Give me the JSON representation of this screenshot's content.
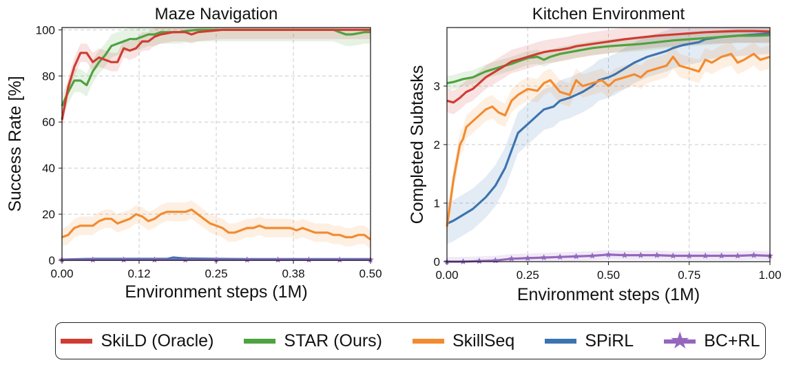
{
  "colors": {
    "skild": "#d03c31",
    "star": "#4ea23f",
    "skillseq": "#f28b30",
    "spirl": "#3b74b0",
    "bcrl": "#9467bd"
  },
  "legend": [
    {
      "label": "SkiLD (Oracle)",
      "color": "#d03c31",
      "marker": "line"
    },
    {
      "label": "STAR (Ours)",
      "color": "#4ea23f",
      "marker": "line"
    },
    {
      "label": "SkillSeq",
      "color": "#f28b30",
      "marker": "line"
    },
    {
      "label": "SPiRL",
      "color": "#3b74b0",
      "marker": "line"
    },
    {
      "label": "BC+RL",
      "color": "#9467bd",
      "marker": "star"
    }
  ],
  "chart_data": [
    {
      "type": "line",
      "title": "Maze Navigation",
      "xlabel": "Environment steps (1M)",
      "ylabel": "Success Rate [%]",
      "xlim": [
        0,
        0.5
      ],
      "ylim": [
        0,
        101
      ],
      "xticks": [
        "0.00",
        "0.12",
        "0.25",
        "0.38",
        "0.50"
      ],
      "xtick_values": [
        0,
        0.125,
        0.25,
        0.375,
        0.5
      ],
      "yticks": [
        "0",
        "20",
        "40",
        "60",
        "80",
        "100"
      ],
      "ytick_values": [
        0,
        20,
        40,
        60,
        80,
        100
      ],
      "grid": true,
      "series": [
        {
          "key": "skillseq",
          "x": [
            0,
            0.01,
            0.02,
            0.03,
            0.04,
            0.05,
            0.06,
            0.07,
            0.08,
            0.09,
            0.1,
            0.11,
            0.12,
            0.13,
            0.14,
            0.15,
            0.16,
            0.17,
            0.18,
            0.19,
            0.2,
            0.21,
            0.22,
            0.23,
            0.24,
            0.25,
            0.26,
            0.27,
            0.28,
            0.29,
            0.3,
            0.31,
            0.32,
            0.33,
            0.34,
            0.35,
            0.36,
            0.37,
            0.38,
            0.39,
            0.4,
            0.41,
            0.42,
            0.43,
            0.44,
            0.45,
            0.46,
            0.47,
            0.48,
            0.49,
            0.5
          ],
          "y": [
            10,
            11,
            14,
            15,
            15,
            15,
            17,
            18,
            18,
            16,
            17,
            18,
            20,
            19,
            17,
            18,
            20,
            21,
            21,
            21,
            21,
            22,
            20,
            18,
            16,
            15,
            14,
            12,
            12,
            13,
            14,
            14,
            15,
            14,
            14,
            14,
            14,
            14,
            13,
            14,
            13,
            12,
            12,
            12,
            11,
            11,
            10,
            10,
            11,
            11,
            9
          ],
          "band": 4
        },
        {
          "key": "star",
          "x": [
            0,
            0.01,
            0.02,
            0.03,
            0.04,
            0.05,
            0.06,
            0.07,
            0.08,
            0.09,
            0.1,
            0.11,
            0.12,
            0.13,
            0.14,
            0.15,
            0.16,
            0.17,
            0.18,
            0.19,
            0.2,
            0.22,
            0.24,
            0.26,
            0.28,
            0.3,
            0.32,
            0.34,
            0.36,
            0.38,
            0.4,
            0.42,
            0.44,
            0.45,
            0.46,
            0.47,
            0.48,
            0.49,
            0.5
          ],
          "y": [
            67,
            73,
            78,
            78,
            76,
            82,
            86,
            89,
            93,
            94,
            95,
            96,
            96,
            97,
            98,
            98,
            99,
            99,
            99,
            99,
            99.5,
            100,
            100,
            100,
            100,
            100,
            100,
            100,
            100,
            100,
            100,
            100,
            100,
            99,
            98,
            98,
            98.5,
            99,
            99
          ],
          "band": 5
        },
        {
          "key": "skild",
          "x": [
            0,
            0.01,
            0.02,
            0.03,
            0.04,
            0.05,
            0.06,
            0.07,
            0.08,
            0.09,
            0.1,
            0.11,
            0.12,
            0.13,
            0.14,
            0.15,
            0.16,
            0.17,
            0.18,
            0.19,
            0.2,
            0.21,
            0.22,
            0.24,
            0.26,
            0.28,
            0.3,
            0.32,
            0.34,
            0.36,
            0.38,
            0.4,
            0.42,
            0.44,
            0.46,
            0.48,
            0.5
          ],
          "y": [
            61,
            75,
            84,
            90,
            90,
            86,
            88,
            87,
            86,
            86,
            92,
            91,
            92,
            95,
            95,
            97,
            98,
            98.5,
            99,
            99,
            99,
            98,
            99,
            99.5,
            100,
            100,
            100,
            100,
            100,
            100,
            100,
            100,
            100,
            100,
            100,
            100,
            100
          ],
          "band": 4
        },
        {
          "key": "spirl",
          "x": [
            0,
            0.05,
            0.1,
            0.15,
            0.17,
            0.18,
            0.2,
            0.25,
            0.3,
            0.35,
            0.4,
            0.45,
            0.5
          ],
          "y": [
            0.3,
            0.6,
            0.6,
            0.6,
            0.6,
            1.2,
            0.8,
            0.6,
            0.5,
            0.5,
            0.5,
            0.5,
            0.5
          ],
          "band": 0.5
        },
        {
          "key": "bcrl",
          "x": [
            0,
            0.05,
            0.1,
            0.15,
            0.2,
            0.25,
            0.3,
            0.35,
            0.4,
            0.45,
            0.5
          ],
          "y": [
            0.2,
            0.2,
            0.2,
            0.2,
            0.2,
            0.2,
            0.2,
            0.2,
            0.2,
            0.2,
            0.2
          ],
          "band": 0.3,
          "markers": true
        }
      ]
    },
    {
      "type": "line",
      "title": "Kitchen Environment",
      "xlabel": "Environment steps (1M)",
      "ylabel": "Completed Subtasks",
      "xlim": [
        0,
        1.0
      ],
      "ylim": [
        0,
        4
      ],
      "xticks": [
        "0.00",
        "0.25",
        "0.50",
        "0.75",
        "1.00"
      ],
      "xtick_values": [
        0,
        0.25,
        0.5,
        0.75,
        1.0
      ],
      "yticks": [
        "0",
        "1",
        "2",
        "3"
      ],
      "ytick_values": [
        0,
        1,
        2,
        3
      ],
      "grid": true,
      "series": [
        {
          "key": "spirl",
          "x": [
            0,
            0.02,
            0.05,
            0.08,
            0.1,
            0.12,
            0.15,
            0.18,
            0.2,
            0.22,
            0.25,
            0.28,
            0.3,
            0.33,
            0.35,
            0.38,
            0.4,
            0.42,
            0.45,
            0.47,
            0.5,
            0.52,
            0.55,
            0.58,
            0.6,
            0.62,
            0.65,
            0.68,
            0.7,
            0.73,
            0.75,
            0.78,
            0.8,
            0.85,
            0.9,
            0.95,
            1.0
          ],
          "y": [
            0.65,
            0.7,
            0.8,
            0.9,
            1.0,
            1.1,
            1.3,
            1.6,
            1.9,
            2.2,
            2.35,
            2.5,
            2.6,
            2.65,
            2.75,
            2.8,
            2.85,
            2.9,
            3.0,
            3.1,
            3.15,
            3.2,
            3.3,
            3.4,
            3.45,
            3.5,
            3.55,
            3.6,
            3.65,
            3.7,
            3.72,
            3.75,
            3.8,
            3.84,
            3.86,
            3.88,
            3.9
          ],
          "band": 0.35
        },
        {
          "key": "skillseq",
          "x": [
            0,
            0.01,
            0.02,
            0.03,
            0.04,
            0.05,
            0.06,
            0.08,
            0.1,
            0.12,
            0.14,
            0.16,
            0.18,
            0.2,
            0.22,
            0.25,
            0.28,
            0.3,
            0.32,
            0.35,
            0.38,
            0.4,
            0.42,
            0.45,
            0.48,
            0.5,
            0.52,
            0.55,
            0.58,
            0.6,
            0.62,
            0.65,
            0.68,
            0.7,
            0.72,
            0.75,
            0.78,
            0.8,
            0.82,
            0.85,
            0.88,
            0.9,
            0.92,
            0.95,
            0.97,
            1.0
          ],
          "y": [
            0.6,
            1.0,
            1.4,
            1.7,
            2.0,
            2.1,
            2.3,
            2.4,
            2.5,
            2.6,
            2.65,
            2.55,
            2.5,
            2.75,
            2.85,
            2.95,
            2.92,
            3.05,
            3.1,
            2.9,
            2.85,
            3.1,
            3.0,
            3.05,
            3.1,
            3.0,
            3.1,
            3.15,
            3.2,
            3.15,
            3.25,
            3.3,
            3.35,
            3.5,
            3.35,
            3.3,
            3.25,
            3.45,
            3.4,
            3.5,
            3.55,
            3.4,
            3.45,
            3.55,
            3.45,
            3.5
          ],
          "band": 0.2
        },
        {
          "key": "star",
          "x": [
            0,
            0.02,
            0.05,
            0.08,
            0.1,
            0.12,
            0.15,
            0.18,
            0.2,
            0.22,
            0.25,
            0.28,
            0.3,
            0.32,
            0.35,
            0.38,
            0.4,
            0.42,
            0.45,
            0.5,
            0.55,
            0.6,
            0.65,
            0.7,
            0.75,
            0.8,
            0.85,
            0.9,
            0.95,
            1.0
          ],
          "y": [
            3.05,
            3.07,
            3.12,
            3.15,
            3.2,
            3.25,
            3.3,
            3.35,
            3.38,
            3.42,
            3.48,
            3.5,
            3.45,
            3.5,
            3.55,
            3.58,
            3.6,
            3.62,
            3.65,
            3.68,
            3.7,
            3.72,
            3.75,
            3.78,
            3.8,
            3.82,
            3.84,
            3.86,
            3.86,
            3.87
          ],
          "band": 0.12
        },
        {
          "key": "skild",
          "x": [
            0,
            0.02,
            0.04,
            0.06,
            0.08,
            0.1,
            0.12,
            0.15,
            0.18,
            0.2,
            0.22,
            0.25,
            0.28,
            0.3,
            0.32,
            0.35,
            0.38,
            0.4,
            0.45,
            0.5,
            0.55,
            0.6,
            0.65,
            0.7,
            0.75,
            0.8,
            0.85,
            0.9,
            0.95,
            1.0
          ],
          "y": [
            2.75,
            2.72,
            2.8,
            2.9,
            2.95,
            3.05,
            3.15,
            3.25,
            3.35,
            3.42,
            3.45,
            3.5,
            3.55,
            3.58,
            3.6,
            3.62,
            3.65,
            3.68,
            3.72,
            3.76,
            3.8,
            3.83,
            3.86,
            3.88,
            3.9,
            3.92,
            3.93,
            3.94,
            3.94,
            3.93
          ],
          "band": 0.2
        },
        {
          "key": "bcrl",
          "x": [
            0,
            0.05,
            0.1,
            0.15,
            0.2,
            0.25,
            0.3,
            0.35,
            0.4,
            0.45,
            0.5,
            0.55,
            0.6,
            0.65,
            0.7,
            0.75,
            0.8,
            0.85,
            0.9,
            0.95,
            1.0
          ],
          "y": [
            0.0,
            0.0,
            0.01,
            0.02,
            0.05,
            0.06,
            0.07,
            0.08,
            0.09,
            0.1,
            0.12,
            0.11,
            0.11,
            0.11,
            0.1,
            0.1,
            0.1,
            0.1,
            0.1,
            0.11,
            0.1
          ],
          "band": 0.08,
          "markers": true
        }
      ]
    }
  ]
}
